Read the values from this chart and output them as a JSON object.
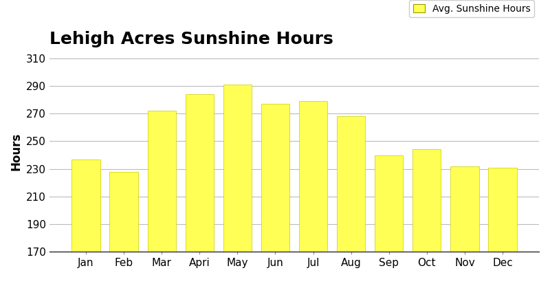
{
  "title": "Lehigh Acres Sunshine Hours",
  "ylabel": "Hours",
  "categories": [
    "Jan",
    "Feb",
    "Mar",
    "Apri",
    "May",
    "Jun",
    "Jul",
    "Aug",
    "Sep",
    "Oct",
    "Nov",
    "Dec"
  ],
  "values": [
    237,
    228,
    272,
    284,
    291,
    277,
    279,
    268,
    240,
    244,
    232,
    231
  ],
  "bar_color": "#FFFF55",
  "bar_edgecolor": "#CCCC00",
  "ylim": [
    170,
    315
  ],
  "yticks": [
    170,
    190,
    210,
    230,
    250,
    270,
    290,
    310
  ],
  "legend_label": "Avg. Sunshine Hours",
  "title_fontsize": 18,
  "ylabel_fontsize": 12,
  "tick_fontsize": 11,
  "legend_fontsize": 10,
  "background_color": "#ffffff",
  "grid_color": "#bbbbbb"
}
